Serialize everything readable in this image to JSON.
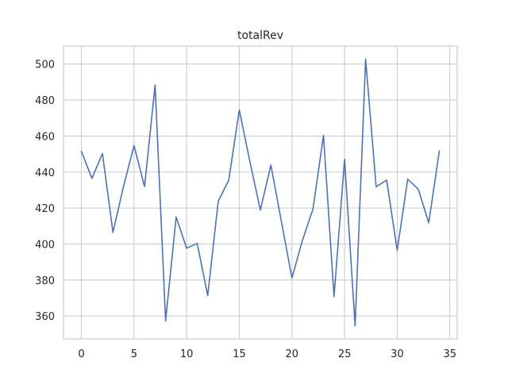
{
  "chart_data": {
    "type": "line",
    "title": "totalRev",
    "xlabel": "",
    "ylabel": "",
    "xlim": [
      -1.7,
      35.7
    ],
    "ylim": [
      347.3,
      510.0
    ],
    "xticks": [
      0,
      5,
      10,
      15,
      20,
      25,
      30,
      35
    ],
    "yticks": [
      360,
      380,
      400,
      420,
      440,
      460,
      480,
      500
    ],
    "grid": true,
    "line_color": "#4c72b0",
    "grid_color": "#cccccc",
    "series": [
      {
        "x": [
          0,
          1,
          2,
          3,
          4,
          5,
          6,
          7,
          8,
          9,
          10,
          11,
          12,
          13,
          14,
          15,
          16,
          17,
          18,
          19,
          20,
          21,
          22,
          23,
          24,
          25,
          26,
          27,
          28,
          29,
          30,
          31,
          32,
          33,
          34
        ],
        "values": [
          451.5,
          436.5,
          450.3,
          406.5,
          432.0,
          454.7,
          431.9,
          488.3,
          357.3,
          415.0,
          397.7,
          400.4,
          371.4,
          423.8,
          435.5,
          474.5,
          446.0,
          418.9,
          443.9,
          412.5,
          381.2,
          402.1,
          419.5,
          460.4,
          370.8,
          447.1,
          354.6,
          502.7,
          431.8,
          435.5,
          396.5,
          436.0,
          430.5,
          411.8,
          451.7
        ]
      }
    ]
  }
}
